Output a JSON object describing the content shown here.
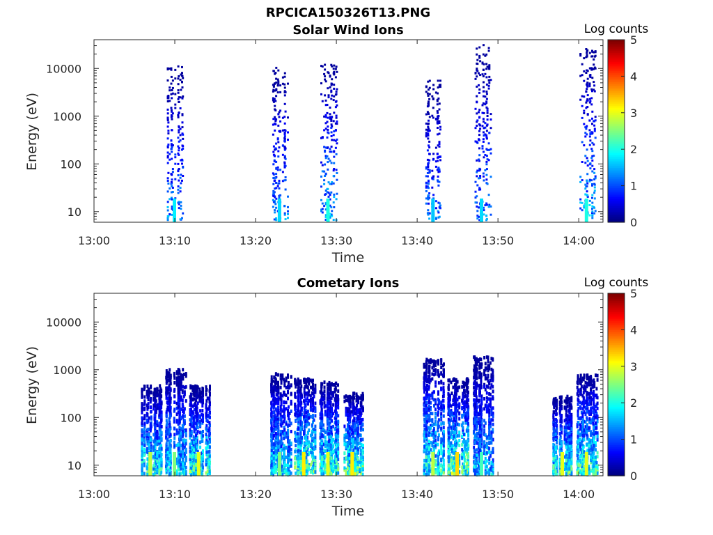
{
  "figure_title": "RPCICA150326T13.PNG",
  "colormap": "jet",
  "chart_data": [
    {
      "type": "heatmap",
      "title": "Solar Wind Ions",
      "xlabel": "Time",
      "ylabel": "Energy (eV)",
      "x_ticks": [
        "13:00",
        "13:10",
        "13:20",
        "13:30",
        "13:40",
        "13:50",
        "14:00"
      ],
      "x_range": [
        "13:00",
        "14:03"
      ],
      "y_scale": "log",
      "y_ticks": [
        "10",
        "100",
        "1000",
        "10000"
      ],
      "y_range": [
        6,
        40000
      ],
      "colorbar": {
        "label": "Log counts",
        "ticks": [
          "0",
          "1",
          "2",
          "3",
          "4",
          "5"
        ],
        "range": [
          0,
          5
        ]
      },
      "bursts": [
        {
          "time": "13:10",
          "energy_min": 6,
          "energy_max": 12000,
          "peak_log_counts": 1.8
        },
        {
          "time": "13:23",
          "energy_min": 6,
          "energy_max": 11000,
          "peak_log_counts": 1.7
        },
        {
          "time": "13:29",
          "energy_min": 6,
          "energy_max": 16000,
          "peak_log_counts": 2.0
        },
        {
          "time": "13:42",
          "energy_min": 6,
          "energy_max": 6000,
          "peak_log_counts": 1.6
        },
        {
          "time": "13:48",
          "energy_min": 6,
          "energy_max": 35000,
          "peak_log_counts": 1.7
        },
        {
          "time": "14:01",
          "energy_min": 6,
          "energy_max": 28000,
          "peak_log_counts": 2.0
        }
      ]
    },
    {
      "type": "heatmap",
      "title": "Cometary Ions",
      "xlabel": "Time",
      "ylabel": "Energy (eV)",
      "x_ticks": [
        "13:00",
        "13:10",
        "13:20",
        "13:30",
        "13:40",
        "13:50",
        "14:00"
      ],
      "x_range": [
        "13:00",
        "14:03"
      ],
      "y_scale": "log",
      "y_ticks": [
        "10",
        "100",
        "1000",
        "10000"
      ],
      "y_range": [
        6,
        40000
      ],
      "colorbar": {
        "label": "Log counts",
        "ticks": [
          "0",
          "1",
          "2",
          "3",
          "4",
          "5"
        ],
        "range": [
          0,
          5
        ]
      },
      "bursts": [
        {
          "time": "13:07",
          "energy_min": 6,
          "energy_max": 500,
          "peak_log_counts": 2.8
        },
        {
          "time": "13:10",
          "energy_min": 6,
          "energy_max": 1100,
          "peak_log_counts": 2.5
        },
        {
          "time": "13:13",
          "energy_min": 6,
          "energy_max": 500,
          "peak_log_counts": 3.0
        },
        {
          "time": "13:23",
          "energy_min": 6,
          "energy_max": 900,
          "peak_log_counts": 2.5
        },
        {
          "time": "13:26",
          "energy_min": 6,
          "energy_max": 700,
          "peak_log_counts": 3.2
        },
        {
          "time": "13:29",
          "energy_min": 6,
          "energy_max": 600,
          "peak_log_counts": 3.0
        },
        {
          "time": "13:32",
          "energy_min": 6,
          "energy_max": 350,
          "peak_log_counts": 3.2
        },
        {
          "time": "13:42",
          "energy_min": 6,
          "energy_max": 1800,
          "peak_log_counts": 2.8
        },
        {
          "time": "13:45",
          "energy_min": 6,
          "energy_max": 700,
          "peak_log_counts": 3.3
        },
        {
          "time": "13:48",
          "energy_min": 6,
          "energy_max": 2000,
          "peak_log_counts": 2.2
        },
        {
          "time": "13:58",
          "energy_min": 6,
          "energy_max": 300,
          "peak_log_counts": 3.0
        },
        {
          "time": "14:01",
          "energy_min": 6,
          "energy_max": 900,
          "peak_log_counts": 3.0
        }
      ]
    }
  ]
}
